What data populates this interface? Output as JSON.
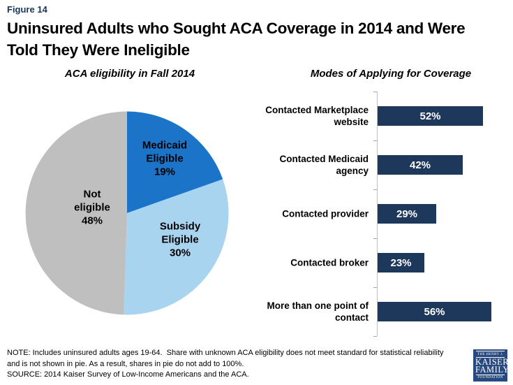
{
  "header": {
    "figure_label": "Figure 14",
    "title_line1": "Uninsured Adults who Sought ACA Coverage in 2014 and Were",
    "title_line2": "Told They Were Ineligible"
  },
  "chart_data": [
    {
      "type": "pie",
      "title": "ACA eligibility in Fall 2014",
      "start_angle_deg": 0,
      "slices": [
        {
          "id": "medicaid-eligible",
          "label_lines": [
            "Medicaid",
            "Eligible"
          ],
          "value": 19,
          "display": "19%",
          "color": "#1b74c8"
        },
        {
          "id": "subsidy-eligible",
          "label_lines": [
            "Subsidy",
            "Eligible"
          ],
          "value": 30,
          "display": "30%",
          "color": "#a9d4f0"
        },
        {
          "id": "not-eligible",
          "label_lines": [
            "Not",
            "eligible"
          ],
          "value": 48,
          "display": "48%",
          "color": "#bfbfbf"
        }
      ]
    },
    {
      "type": "bar",
      "title": "Modes of Applying for Coverage",
      "orientation": "horizontal",
      "categories": [
        "Contacted Marketplace\nwebsite",
        "Contacted Medicaid\nagency",
        "Contacted provider",
        "Contacted broker",
        "More than one point of\ncontact"
      ],
      "values": [
        52,
        42,
        29,
        23,
        56
      ],
      "value_suffix": "%",
      "xlim": [
        0,
        60
      ],
      "bar_color": "#1e385c",
      "label_position": "inside-center",
      "grid": false,
      "legend": "none"
    }
  ],
  "footer": {
    "note_line1": "NOTE: Includes uninsured adults ages 19-64.  Share with unknown ACA eligibility does not meet standard for statistical reliability",
    "note_line2": "and is not shown in pie. As a result, shares in pie do not add to 100%.",
    "source": "SOURCE: 2014 Kaiser Survey of Low-Income Americans and the ACA."
  },
  "logo": {
    "top": "THE HENRY J.",
    "name1": "KAISER",
    "name2": "FAMILY",
    "bottom": "FOUNDATION",
    "color": "#27497f"
  },
  "colors": {
    "figure_label": "#17365d",
    "axis_line": "#bfbfbf",
    "tick": "#a6a6a6",
    "bar_value_text": "#ffffff",
    "text": "#000000",
    "background": "#ffffff"
  }
}
